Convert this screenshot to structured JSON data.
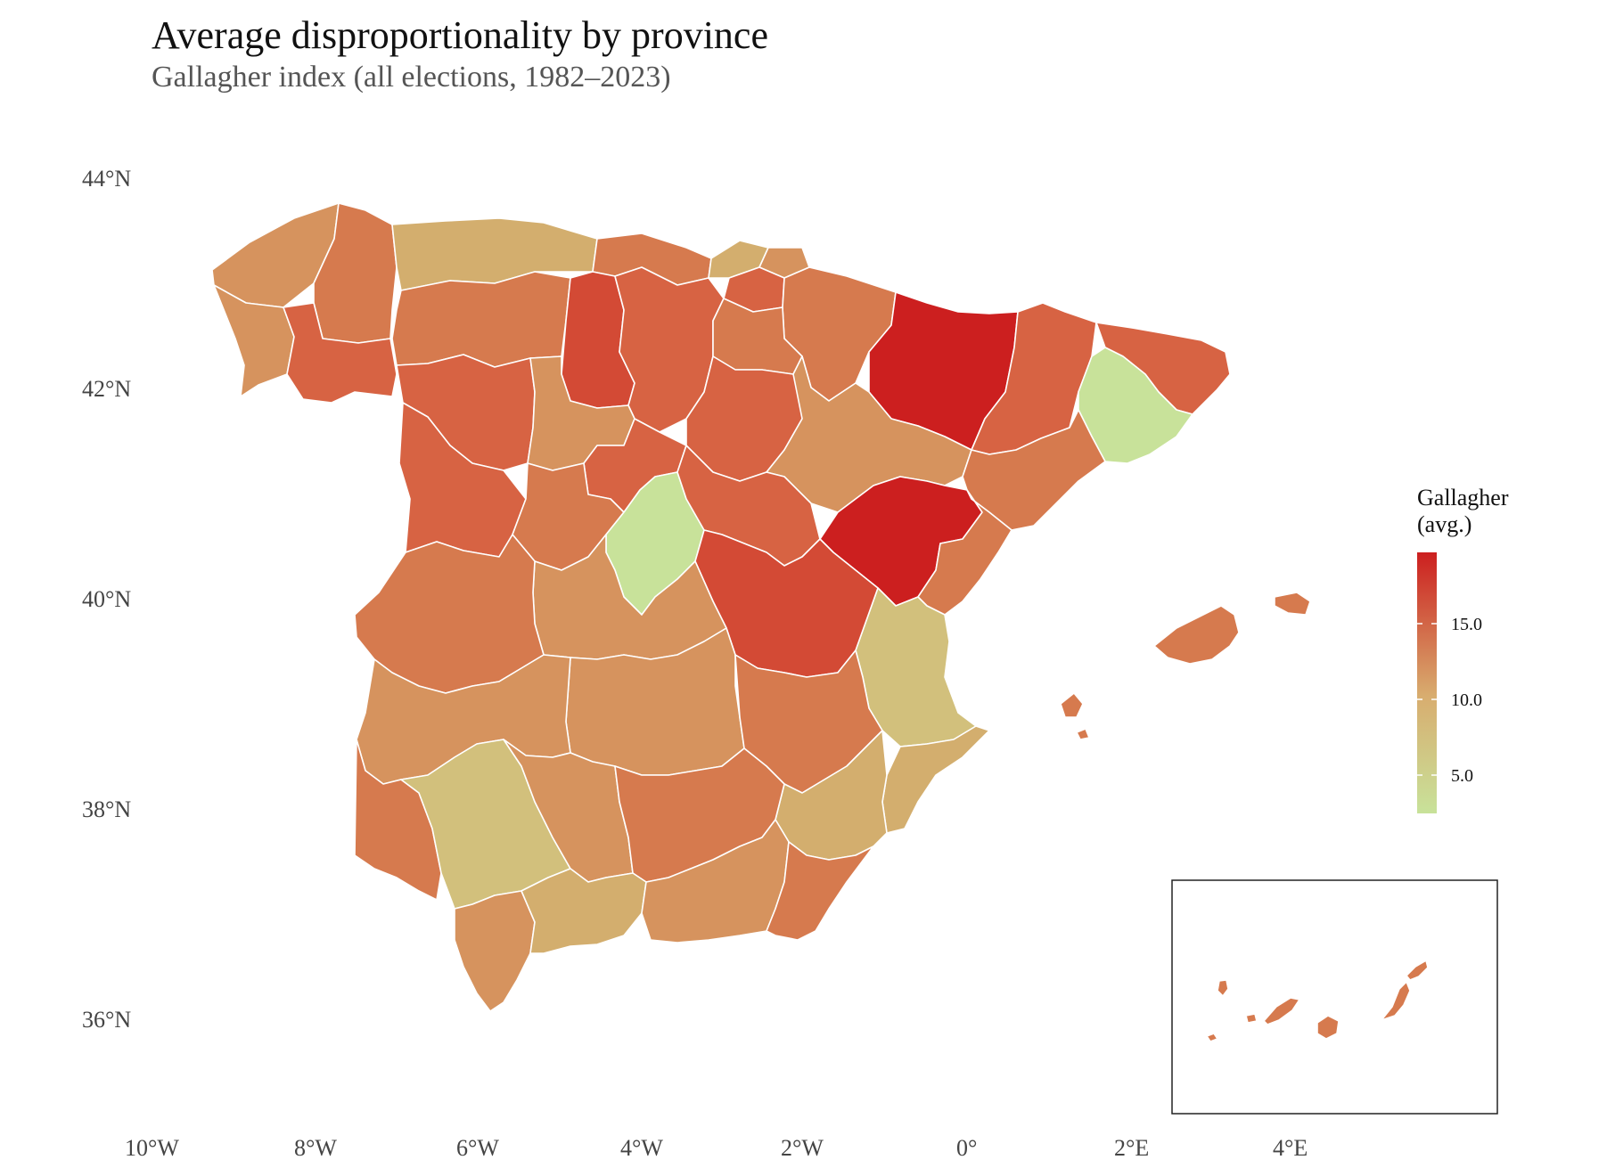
{
  "title": "Average disproportionality by province",
  "subtitle": "Gallagher index (all elections, 1982–2023)",
  "axes": {
    "lat_labels": [
      "44°N",
      "42°N",
      "40°N",
      "38°N",
      "36°N"
    ],
    "lon_labels": [
      "10°W",
      "8°W",
      "6°W",
      "4°W",
      "2°W",
      "0°",
      "2°E",
      "4°E"
    ]
  },
  "legend": {
    "title_line1": "Gallagher",
    "title_line2": "(avg.)",
    "ticks": [
      "15.0",
      "10.0",
      "5.0"
    ],
    "colors": {
      "low": "#c8e29a",
      "mid": "#d8ad6f",
      "high": "#cc1f1f"
    }
  },
  "colors": {
    "red_strong": "#cc1f1f",
    "red": "#d34a35",
    "red_orange": "#d76343",
    "orange": "#d67a4e",
    "tan_orange": "#d6935e",
    "tan": "#d3ae6e",
    "khaki": "#d2c07c",
    "light_green": "#c8e29a",
    "pale_green": "#cdd68b"
  }
}
